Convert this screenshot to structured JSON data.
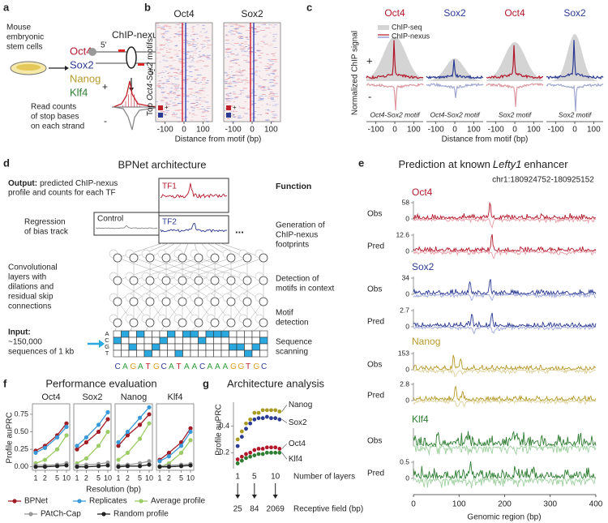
{
  "a": {
    "label": "a",
    "intro": [
      "Mouse",
      "embryonic",
      "stem cells"
    ],
    "tfs": [
      {
        "name": "Oct4",
        "color": "#b2182b"
      },
      {
        "name": "Sox2",
        "color": "#2b3a93"
      },
      {
        "name": "Nanog",
        "color": "#b59a2c"
      },
      {
        "name": "Klf4",
        "color": "#2e7d32"
      }
    ],
    "method": "ChIP-nexus",
    "prime": "5'",
    "plus": "+",
    "minus": "-",
    "readout": [
      "Read counts",
      "of stop bases",
      "on each strand"
    ]
  },
  "b": {
    "label": "b",
    "titles": [
      "Oct4",
      "Sox2"
    ],
    "ylabel": {
      "pre": "Top",
      "em": "Oct4-Sox2",
      "post": "motifs"
    },
    "xlim": [
      -150,
      150
    ],
    "xticks": [
      -100,
      0,
      100
    ],
    "strands": [
      "+",
      "-"
    ],
    "xlabel": "Distance from motif (bp)"
  },
  "c": {
    "label": "c",
    "titles": [
      "Oct4",
      "Sox2",
      "Oct4",
      "Sox2"
    ],
    "title_colors": [
      "#b2182b",
      "#2b3a93",
      "#b2182b",
      "#2b3a93"
    ],
    "legend": [
      "ChIP-seq",
      "ChIP-nexus"
    ],
    "ylabel": "Normalized ChIP signal",
    "strands": [
      "+",
      "-"
    ],
    "motifs": [
      "Oct4-Sox2 motif",
      "Oct4-Sox2 motif",
      "Sox2 motif",
      "Sox2 motif"
    ],
    "xlim": [
      -150,
      150
    ],
    "xticks": [
      -100,
      0,
      100
    ],
    "xlabel": "Distance from motif (bp)"
  },
  "d": {
    "label": "d",
    "title": "BPNet architecture",
    "output": {
      "bold": "Output:",
      "rest": "predicted ChIP-nexus",
      "line2": "profile and counts for each TF"
    },
    "tf_boxes": [
      "TF1",
      "TF2"
    ],
    "control": "Control",
    "bias": [
      "Regression",
      "of bias track"
    ],
    "ellipsis": "...",
    "function_head": "Function",
    "functions": [
      [
        "Generation of",
        "ChIP-nexus",
        "footprints"
      ],
      [
        "Detection of",
        "motifs in context"
      ],
      [
        "Motif",
        "detection"
      ],
      [
        "Sequence",
        "scanning"
      ]
    ],
    "conv": [
      "Convolutional",
      "layers with",
      "dilations and",
      "residual skip",
      "connections"
    ],
    "input": {
      "bold": "Input:",
      "lines": [
        "~150,000",
        "sequences of 1 kb"
      ]
    },
    "bases": [
      "A",
      "C",
      "G",
      "T"
    ],
    "sequence": "CAGATGCATAACAAAGGTGC"
  },
  "e": {
    "label": "e",
    "title": {
      "pre": "Prediction at known",
      "em": "Lefty1",
      "post": "enhancer"
    },
    "locus": "chr1:180924752-180925152",
    "obs": "Obs",
    "pred": "Pred",
    "tracks": [
      {
        "name": "Oct4",
        "color": "#b2182b",
        "light": "#e89aa4",
        "obs_yticks": [
          0,
          58
        ],
        "pred_yticks": [
          0,
          12.6
        ]
      },
      {
        "name": "Sox2",
        "color": "#2b3a93",
        "light": "#9ea6dc",
        "obs_yticks": [
          0,
          34
        ],
        "pred_yticks": [
          0,
          2.7
        ]
      },
      {
        "name": "Nanog",
        "color": "#b59a2c",
        "light": "#ddd09a",
        "obs_yticks": [
          0,
          153
        ],
        "pred_yticks": [
          0,
          2.8
        ]
      },
      {
        "name": "Klf4",
        "color": "#2e7d32",
        "light": "#9fd0a0",
        "pred_yticks": [
          0,
          0.5
        ]
      }
    ],
    "xlim": [
      0,
      400
    ],
    "xticks": [
      0,
      100,
      200,
      300,
      400
    ],
    "xlabel": "Genomic region (bp)"
  },
  "f": {
    "label": "f",
    "title": "Performance evaluation",
    "ylabel": "Profile auPRC",
    "xlabel": "Resolution (bp)",
    "x": [
      1,
      2,
      5,
      10
    ],
    "xlog": true,
    "ylim": [
      -0.05,
      0.9
    ],
    "yticks": [
      {
        "value": 0,
        "label": "0.00"
      },
      {
        "value": 0.25,
        "label": "0.25"
      },
      {
        "value": 0.5,
        "label": "0.50"
      },
      {
        "value": 0.75,
        "label": "0.75"
      }
    ],
    "series": [
      {
        "name": "BPNet",
        "color": "#a01d26"
      },
      {
        "name": "Replicates",
        "color": "#3a9ad9"
      },
      {
        "name": "Average profile",
        "color": "#9ccc65"
      },
      {
        "name": "PAtCh-Cap",
        "color": "#999999"
      },
      {
        "name": "Random profile",
        "color": "#222222"
      }
    ],
    "panels": [
      {
        "name": "Oct4",
        "values": [
          [
            0.23,
            0.3,
            0.45,
            0.62
          ],
          [
            0.2,
            0.27,
            0.42,
            0.57
          ],
          [
            0.05,
            0.1,
            0.25,
            0.45
          ],
          [
            0.02,
            0.02,
            0.03,
            0.05
          ],
          [
            0.0,
            0.0,
            0.01,
            0.02
          ]
        ]
      },
      {
        "name": "Sox2",
        "values": [
          [
            0.25,
            0.35,
            0.5,
            0.68
          ],
          [
            0.3,
            0.42,
            0.6,
            0.78
          ],
          [
            0.05,
            0.12,
            0.3,
            0.5
          ],
          [
            0.02,
            0.03,
            0.04,
            0.06
          ],
          [
            0.0,
            0.0,
            0.01,
            0.02
          ]
        ]
      },
      {
        "name": "Nanog",
        "values": [
          [
            0.3,
            0.45,
            0.6,
            0.75
          ],
          [
            0.35,
            0.5,
            0.7,
            0.85
          ],
          [
            0.1,
            0.2,
            0.4,
            0.62
          ],
          [
            0.02,
            0.03,
            0.05,
            0.08
          ],
          [
            0.0,
            0.01,
            0.01,
            0.03
          ]
        ]
      },
      {
        "name": "Klf4",
        "values": [
          [
            0.1,
            0.2,
            0.35,
            0.55
          ],
          [
            0.08,
            0.15,
            0.3,
            0.5
          ],
          [
            0.0,
            0.05,
            0.2,
            0.38
          ],
          [
            0.01,
            0.02,
            0.03,
            0.04
          ],
          [
            0.0,
            0.0,
            0.01,
            0.02
          ]
        ]
      }
    ]
  },
  "g": {
    "label": "g",
    "title": "Architecture analysis",
    "ylabel": "Profile auPRC",
    "ylim": [
      0.08,
      0.58
    ],
    "yticks": [
      0.2,
      0.4
    ],
    "x": [
      1,
      2,
      3,
      4,
      5,
      6,
      7,
      8,
      9,
      10,
      11
    ],
    "xlim": [
      0,
      12
    ],
    "xticks": [
      1,
      5,
      10
    ],
    "xlabel": "Number of layers",
    "receptive": [
      25,
      84,
      2069
    ],
    "receptive_label": "Receptive field (bp)",
    "series": [
      {
        "name": "Nanog",
        "color": "#a89a22",
        "values": [
          0.3,
          0.36,
          0.42,
          0.45,
          0.5,
          0.5,
          0.52,
          0.52,
          0.52,
          0.52,
          0.51
        ]
      },
      {
        "name": "Sox2",
        "color": "#2b3a93",
        "values": [
          0.25,
          0.32,
          0.38,
          0.42,
          0.45,
          0.46,
          0.46,
          0.47,
          0.46,
          0.46,
          0.45
        ]
      },
      {
        "name": "Oct4",
        "color": "#b2182b",
        "values": [
          0.15,
          0.17,
          0.19,
          0.2,
          0.22,
          0.23,
          0.23,
          0.24,
          0.24,
          0.24,
          0.23
        ]
      },
      {
        "name": "Klf4",
        "color": "#2e7d32",
        "values": [
          0.12,
          0.14,
          0.16,
          0.17,
          0.18,
          0.19,
          0.19,
          0.2,
          0.2,
          0.2,
          0.2
        ]
      }
    ]
  }
}
